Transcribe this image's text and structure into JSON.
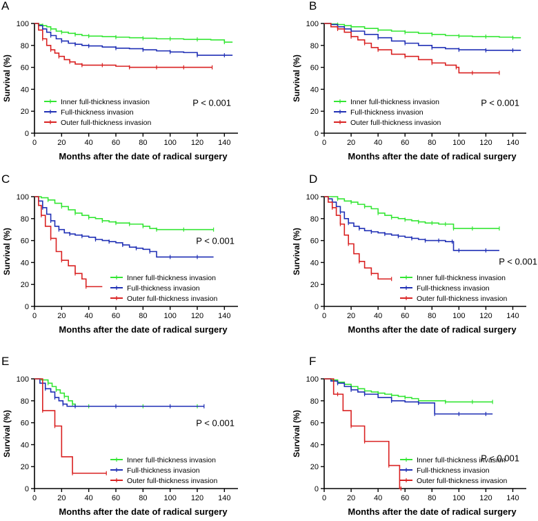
{
  "figure": {
    "colors": {
      "inner": "#33e633",
      "full": "#1f2fb5",
      "outer": "#d92020",
      "axis": "#000000"
    }
  },
  "chart_data": [
    {
      "panel": "A",
      "type": "line",
      "subtype": "kaplan-meier",
      "xlabel": "Months after the date of radical surgery",
      "ylabel": "Survival (%)",
      "xlim": [
        0,
        150
      ],
      "ylim": [
        0,
        100
      ],
      "xticks": [
        0,
        20,
        40,
        60,
        80,
        100,
        120,
        140
      ],
      "yticks": [
        0,
        20,
        40,
        60,
        80,
        100
      ],
      "pvalue": "P < 0.001",
      "pvalue_position": "right-lower",
      "legend_position": "bottom-left",
      "series": [
        {
          "name": "Inner full-thickness invasion",
          "color_key": "inner",
          "x": [
            0,
            3,
            6,
            9,
            12,
            16,
            20,
            25,
            30,
            35,
            40,
            50,
            60,
            70,
            80,
            90,
            100,
            110,
            120,
            130,
            140,
            146
          ],
          "y": [
            100,
            99,
            98,
            97,
            95,
            93,
            92,
            91,
            90,
            89,
            88.5,
            88,
            87.5,
            87,
            86.5,
            86,
            86,
            85.5,
            85.5,
            85,
            83,
            83
          ]
        },
        {
          "name": "Full-thickness invasion",
          "color_key": "full",
          "x": [
            0,
            3,
            6,
            9,
            12,
            16,
            20,
            25,
            30,
            35,
            40,
            50,
            60,
            70,
            80,
            90,
            100,
            110,
            120,
            130,
            140,
            146
          ],
          "y": [
            100,
            98,
            95,
            92,
            89,
            86,
            84,
            82,
            81,
            80,
            79.5,
            78.5,
            77.5,
            77,
            76,
            75,
            74,
            73.5,
            71,
            71,
            71,
            71
          ]
        },
        {
          "name": "Outer full-thickness invasion",
          "color_key": "outer",
          "x": [
            0,
            3,
            6,
            9,
            12,
            15,
            18,
            22,
            26,
            30,
            35,
            40,
            50,
            60,
            70,
            80,
            90,
            100,
            110,
            120,
            131
          ],
          "y": [
            100,
            94,
            86,
            80,
            76,
            73,
            70,
            67,
            65,
            63,
            62,
            62,
            62,
            61,
            60,
            60,
            60,
            60,
            60,
            60,
            60
          ]
        }
      ]
    },
    {
      "panel": "B",
      "type": "line",
      "subtype": "kaplan-meier",
      "xlabel": "Months after the date of radical surgery",
      "ylabel": "Survival (%)",
      "xlim": [
        0,
        150
      ],
      "ylim": [
        0,
        100
      ],
      "xticks": [
        0,
        20,
        40,
        60,
        80,
        100,
        120,
        140
      ],
      "yticks": [
        0,
        20,
        40,
        60,
        80,
        100
      ],
      "pvalue": "P < 0.001",
      "pvalue_position": "right-lower",
      "legend_position": "bottom-left",
      "series": [
        {
          "name": "Inner full-thickness invasion",
          "color_key": "inner",
          "x": [
            0,
            5,
            10,
            15,
            20,
            30,
            40,
            50,
            60,
            70,
            80,
            90,
            100,
            110,
            120,
            130,
            140,
            146
          ],
          "y": [
            100,
            99.5,
            99,
            98,
            97,
            95.5,
            94,
            93,
            92,
            91,
            90,
            89,
            88.5,
            88,
            88,
            87.5,
            87,
            87
          ]
        },
        {
          "name": "Full-thickness invasion",
          "color_key": "full",
          "x": [
            0,
            5,
            10,
            15,
            20,
            30,
            40,
            50,
            60,
            70,
            80,
            90,
            100,
            110,
            120,
            130,
            140,
            146
          ],
          "y": [
            100,
            99,
            97,
            95,
            93,
            90,
            87,
            84,
            82,
            80,
            78,
            77,
            76,
            76,
            75.5,
            75.5,
            75.5,
            75.5
          ]
        },
        {
          "name": "Outer full-thickness invasion",
          "color_key": "outer",
          "x": [
            0,
            5,
            10,
            15,
            20,
            25,
            30,
            35,
            40,
            50,
            60,
            70,
            80,
            90,
            98,
            100,
            110,
            120,
            130
          ],
          "y": [
            100,
            97,
            95,
            92,
            88,
            85,
            82,
            78,
            76,
            72,
            70,
            67,
            64,
            62,
            60,
            55,
            55,
            55,
            55
          ]
        }
      ]
    },
    {
      "panel": "C",
      "type": "line",
      "subtype": "kaplan-meier",
      "xlabel": "Months after the date of radical surgery",
      "ylabel": "Survival (%)",
      "xlim": [
        0,
        150
      ],
      "ylim": [
        0,
        100
      ],
      "xticks": [
        0,
        20,
        40,
        60,
        80,
        100,
        120,
        140
      ],
      "yticks": [
        0,
        20,
        40,
        60,
        80,
        100
      ],
      "pvalue": "P < 0.001",
      "pvalue_position": "right-middle",
      "legend_position": "bottom-center",
      "series": [
        {
          "name": "Inner full-thickness invasion",
          "color_key": "inner",
          "x": [
            0,
            5,
            10,
            15,
            20,
            25,
            30,
            35,
            40,
            45,
            50,
            55,
            60,
            65,
            70,
            75,
            80,
            85,
            90,
            100,
            110,
            120,
            132
          ],
          "y": [
            100,
            99,
            97,
            94,
            91,
            88,
            85,
            83,
            81,
            80,
            78,
            77,
            76,
            76,
            75,
            75,
            73,
            71,
            70,
            70,
            70,
            70,
            70
          ]
        },
        {
          "name": "Full-thickness invasion",
          "color_key": "full",
          "x": [
            0,
            3,
            6,
            9,
            12,
            15,
            18,
            22,
            26,
            30,
            35,
            40,
            45,
            50,
            55,
            60,
            65,
            70,
            75,
            80,
            85,
            90,
            100,
            110,
            120,
            132
          ],
          "y": [
            100,
            96,
            90,
            84,
            78,
            73,
            70,
            67,
            66,
            65,
            64,
            63,
            61,
            60,
            59,
            58,
            56,
            54,
            53,
            52,
            50,
            45,
            45,
            45,
            45,
            45
          ]
        },
        {
          "name": "Outer full-thickness invasion",
          "color_key": "outer",
          "x": [
            0,
            3,
            5,
            8,
            12,
            16,
            20,
            25,
            30,
            35,
            38,
            50
          ],
          "y": [
            100,
            92,
            83,
            73,
            62,
            50,
            42,
            37,
            30,
            25,
            18,
            18
          ]
        }
      ]
    },
    {
      "panel": "D",
      "type": "line",
      "subtype": "kaplan-meier",
      "xlabel": "Months after the date of radical surgery",
      "ylabel": "Survival (%)",
      "xlim": [
        0,
        150
      ],
      "ylim": [
        0,
        100
      ],
      "xticks": [
        0,
        20,
        40,
        60,
        80,
        100,
        120,
        140
      ],
      "yticks": [
        0,
        20,
        40,
        60,
        80,
        100
      ],
      "pvalue": "P < 0.001",
      "pvalue_position": "right-lower",
      "legend_position": "bottom-center",
      "series": [
        {
          "name": "Inner full-thickness invasion",
          "color_key": "inner",
          "x": [
            0,
            5,
            10,
            15,
            20,
            25,
            30,
            35,
            40,
            45,
            50,
            55,
            60,
            65,
            70,
            75,
            80,
            85,
            90,
            95,
            96,
            100,
            110,
            120,
            130
          ],
          "y": [
            100,
            100,
            98,
            96,
            95,
            93,
            91,
            89,
            85,
            83,
            81,
            80,
            79,
            78,
            77,
            76,
            76,
            75,
            75,
            75,
            71,
            71,
            71,
            71,
            71
          ]
        },
        {
          "name": "Full-thickness invasion",
          "color_key": "full",
          "x": [
            0,
            3,
            6,
            9,
            12,
            15,
            18,
            22,
            26,
            30,
            35,
            40,
            45,
            50,
            55,
            60,
            65,
            70,
            75,
            80,
            85,
            90,
            95,
            96,
            100,
            110,
            120,
            130
          ],
          "y": [
            100,
            98,
            95,
            91,
            86,
            80,
            76,
            73,
            71,
            69,
            68,
            67,
            66,
            65,
            64,
            63,
            62,
            61,
            60,
            60,
            60,
            59,
            59,
            51,
            51,
            51,
            51,
            51
          ]
        },
        {
          "name": "Outer full-thickness invasion",
          "color_key": "outer",
          "x": [
            0,
            3,
            6,
            9,
            12,
            15,
            18,
            22,
            26,
            30,
            35,
            40,
            50
          ],
          "y": [
            100,
            95,
            90,
            83,
            75,
            65,
            57,
            48,
            41,
            35,
            30,
            25,
            25
          ]
        }
      ]
    },
    {
      "panel": "E",
      "type": "line",
      "subtype": "kaplan-meier",
      "xlabel": "Months after the date of radical surgery",
      "ylabel": "Survival (%)",
      "xlim": [
        0,
        150
      ],
      "ylim": [
        0,
        100
      ],
      "xticks": [
        0,
        20,
        40,
        60,
        80,
        100,
        120,
        140
      ],
      "yticks": [
        0,
        20,
        40,
        60,
        80,
        100
      ],
      "pvalue": "P < 0.001",
      "pvalue_position": "right-middle",
      "legend_position": "bottom-center",
      "series": [
        {
          "name": "Inner full-thickness invasion",
          "color_key": "inner",
          "x": [
            0,
            5,
            10,
            13,
            16,
            19,
            22,
            25,
            28,
            30,
            40,
            60,
            80,
            100,
            120,
            125
          ],
          "y": [
            100,
            99,
            96,
            93,
            90,
            87,
            84,
            80,
            77,
            75,
            75,
            75,
            75,
            75,
            75,
            75
          ]
        },
        {
          "name": "Full-thickness invasion",
          "color_key": "full",
          "x": [
            0,
            4,
            8,
            12,
            15,
            18,
            21,
            24,
            30,
            40,
            60,
            80,
            100,
            120,
            125
          ],
          "y": [
            100,
            96,
            91,
            88,
            83,
            80,
            77,
            75,
            75,
            75,
            75,
            75,
            75,
            75,
            75
          ]
        },
        {
          "name": "Outer full-thickness invasion",
          "color_key": "outer",
          "x": [
            0,
            5,
            6,
            10,
            15,
            20,
            28,
            40,
            53
          ],
          "y": [
            100,
            100,
            71,
            71,
            57,
            29,
            14,
            14,
            14
          ]
        }
      ]
    },
    {
      "panel": "F",
      "type": "line",
      "subtype": "kaplan-meier",
      "xlabel": "Months after the date of radical surgery",
      "ylabel": "Survival (%)",
      "xlim": [
        0,
        150
      ],
      "ylim": [
        0,
        100
      ],
      "xticks": [
        0,
        20,
        40,
        60,
        80,
        100,
        120,
        140
      ],
      "yticks": [
        0,
        20,
        40,
        60,
        80,
        100
      ],
      "pvalue": "P < 0.001",
      "pvalue_position": "right-lower",
      "legend_position": "bottom-center",
      "series": [
        {
          "name": "Inner full-thickness invasion",
          "color_key": "inner",
          "x": [
            0,
            5,
            10,
            15,
            20,
            25,
            30,
            35,
            40,
            45,
            50,
            55,
            60,
            65,
            70,
            80,
            90,
            100,
            110,
            120,
            125
          ],
          "y": [
            100,
            99,
            97,
            95,
            93,
            91,
            89,
            88,
            87,
            86,
            85,
            84,
            83,
            82,
            80,
            80,
            79,
            79,
            79,
            79,
            79
          ]
        },
        {
          "name": "Full-thickness invasion",
          "color_key": "full",
          "x": [
            0,
            5,
            10,
            15,
            20,
            25,
            30,
            40,
            50,
            60,
            70,
            80,
            82,
            90,
            100,
            110,
            120,
            125
          ],
          "y": [
            100,
            98,
            96,
            93,
            90,
            88,
            86,
            83,
            80,
            79,
            78,
            78,
            68,
            68,
            68,
            68,
            68,
            68
          ]
        },
        {
          "name": "Outer full-thickness invasion",
          "color_key": "outer",
          "x": [
            0,
            7,
            10,
            14,
            20,
            23,
            30,
            40,
            48,
            56,
            57
          ],
          "y": [
            100,
            86,
            86,
            71,
            57,
            57,
            43,
            43,
            21,
            0,
            0
          ]
        }
      ]
    }
  ]
}
